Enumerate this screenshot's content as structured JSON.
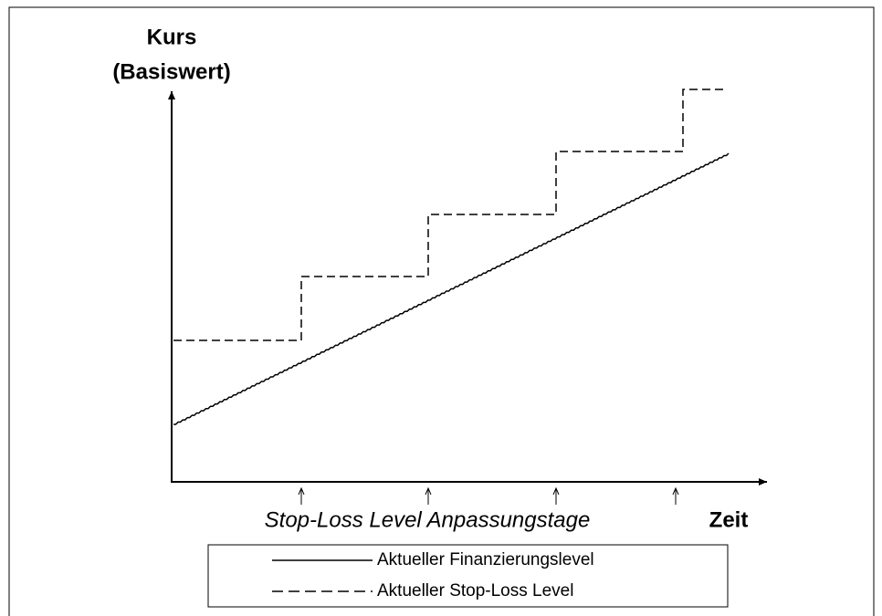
{
  "y_axis": {
    "label_lines": [
      "Kurs",
      "(Basiswert)"
    ]
  },
  "x_axis": {
    "label": "Zeit"
  },
  "annotation": "Stop-Loss Level Anpassungstage",
  "legend": {
    "entries": [
      "Aktueller Finanzierungslevel",
      "Aktueller Stop-Loss Level"
    ]
  }
}
